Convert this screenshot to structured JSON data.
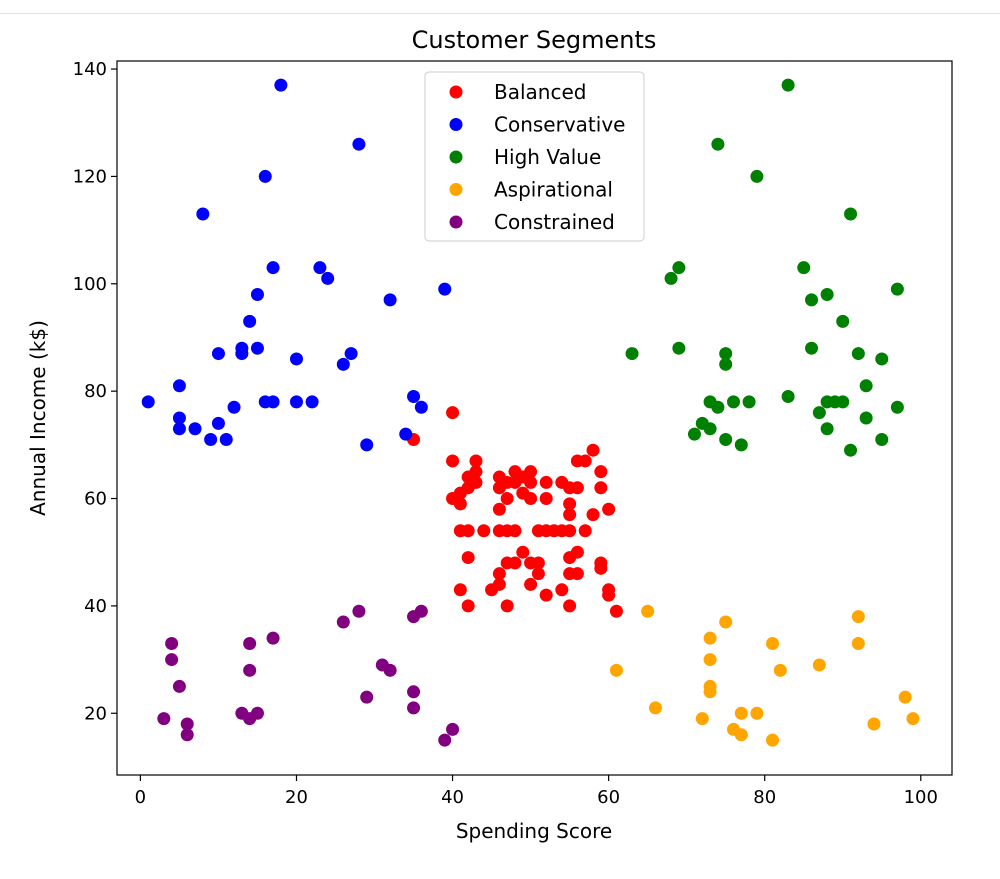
{
  "chart_data": {
    "type": "scatter",
    "title": "Customer Segments",
    "xlabel": "Spending Score",
    "ylabel": "Annual Income (k$)",
    "xlim": [
      -3,
      104
    ],
    "ylim": [
      8.5,
      141.5
    ],
    "xticks": [
      0,
      20,
      40,
      60,
      80,
      100
    ],
    "yticks": [
      20,
      40,
      60,
      80,
      100,
      120,
      140
    ],
    "legend_position": "top-center",
    "grid": false,
    "series": [
      {
        "name": "Balanced",
        "color": "#ff0000",
        "points": [
          [
            35,
            71
          ],
          [
            40,
            76
          ],
          [
            40,
            67
          ],
          [
            40,
            60
          ],
          [
            41,
            61
          ],
          [
            41,
            59
          ],
          [
            41,
            54
          ],
          [
            41,
            43
          ],
          [
            42,
            64
          ],
          [
            42,
            62
          ],
          [
            42,
            54
          ],
          [
            42,
            49
          ],
          [
            42,
            40
          ],
          [
            43,
            67
          ],
          [
            43,
            65
          ],
          [
            43,
            63
          ],
          [
            44,
            54
          ],
          [
            45,
            43
          ],
          [
            46,
            64
          ],
          [
            46,
            62
          ],
          [
            46,
            58
          ],
          [
            46,
            54
          ],
          [
            46,
            46
          ],
          [
            46,
            44
          ],
          [
            47,
            63
          ],
          [
            47,
            60
          ],
          [
            47,
            54
          ],
          [
            47,
            48
          ],
          [
            47,
            40
          ],
          [
            48,
            65
          ],
          [
            48,
            63
          ],
          [
            48,
            54
          ],
          [
            48,
            48
          ],
          [
            49,
            64
          ],
          [
            49,
            61
          ],
          [
            49,
            50
          ],
          [
            50,
            65
          ],
          [
            50,
            63
          ],
          [
            50,
            60
          ],
          [
            50,
            48
          ],
          [
            50,
            44
          ],
          [
            51,
            54
          ],
          [
            51,
            48
          ],
          [
            51,
            46
          ],
          [
            52,
            63
          ],
          [
            52,
            60
          ],
          [
            52,
            54
          ],
          [
            52,
            42
          ],
          [
            53,
            54
          ],
          [
            54,
            63
          ],
          [
            54,
            54
          ],
          [
            54,
            43
          ],
          [
            55,
            62
          ],
          [
            55,
            59
          ],
          [
            55,
            57
          ],
          [
            55,
            54
          ],
          [
            55,
            49
          ],
          [
            55,
            46
          ],
          [
            55,
            40
          ],
          [
            56,
            67
          ],
          [
            56,
            62
          ],
          [
            56,
            50
          ],
          [
            56,
            46
          ],
          [
            57,
            67
          ],
          [
            57,
            54
          ],
          [
            58,
            69
          ],
          [
            58,
            57
          ],
          [
            59,
            65
          ],
          [
            59,
            62
          ],
          [
            59,
            48
          ],
          [
            59,
            47
          ],
          [
            60,
            58
          ],
          [
            60,
            43
          ],
          [
            60,
            42
          ],
          [
            61,
            39
          ]
        ]
      },
      {
        "name": "Conservative",
        "color": "#0000ff",
        "points": [
          [
            1,
            78
          ],
          [
            5,
            81
          ],
          [
            5,
            75
          ],
          [
            5,
            73
          ],
          [
            7,
            73
          ],
          [
            8,
            113
          ],
          [
            9,
            71
          ],
          [
            10,
            87
          ],
          [
            10,
            74
          ],
          [
            11,
            71
          ],
          [
            12,
            77
          ],
          [
            13,
            88
          ],
          [
            13,
            87
          ],
          [
            14,
            93
          ],
          [
            15,
            98
          ],
          [
            15,
            88
          ],
          [
            16,
            120
          ],
          [
            16,
            78
          ],
          [
            17,
            103
          ],
          [
            17,
            78
          ],
          [
            18,
            137
          ],
          [
            20,
            86
          ],
          [
            20,
            78
          ],
          [
            22,
            78
          ],
          [
            23,
            103
          ],
          [
            24,
            101
          ],
          [
            26,
            85
          ],
          [
            27,
            87
          ],
          [
            28,
            126
          ],
          [
            29,
            70
          ],
          [
            32,
            97
          ],
          [
            34,
            72
          ],
          [
            35,
            79
          ],
          [
            36,
            77
          ],
          [
            39,
            99
          ]
        ]
      },
      {
        "name": "High Value",
        "color": "#008000",
        "points": [
          [
            63,
            87
          ],
          [
            68,
            101
          ],
          [
            69,
            103
          ],
          [
            69,
            88
          ],
          [
            71,
            72
          ],
          [
            72,
            74
          ],
          [
            73,
            78
          ],
          [
            73,
            73
          ],
          [
            74,
            126
          ],
          [
            74,
            77
          ],
          [
            75,
            87
          ],
          [
            75,
            85
          ],
          [
            75,
            71
          ],
          [
            76,
            78
          ],
          [
            77,
            70
          ],
          [
            78,
            78
          ],
          [
            79,
            120
          ],
          [
            83,
            137
          ],
          [
            83,
            79
          ],
          [
            85,
            103
          ],
          [
            86,
            97
          ],
          [
            86,
            88
          ],
          [
            87,
            76
          ],
          [
            88,
            98
          ],
          [
            88,
            78
          ],
          [
            88,
            73
          ],
          [
            89,
            78
          ],
          [
            90,
            93
          ],
          [
            90,
            78
          ],
          [
            91,
            113
          ],
          [
            91,
            69
          ],
          [
            92,
            87
          ],
          [
            93,
            81
          ],
          [
            93,
            75
          ],
          [
            95,
            86
          ],
          [
            95,
            71
          ],
          [
            97,
            99
          ],
          [
            97,
            77
          ]
        ]
      },
      {
        "name": "Aspirational",
        "color": "#ffa500",
        "points": [
          [
            61,
            28
          ],
          [
            65,
            39
          ],
          [
            66,
            21
          ],
          [
            72,
            19
          ],
          [
            73,
            34
          ],
          [
            73,
            30
          ],
          [
            73,
            25
          ],
          [
            73,
            24
          ],
          [
            75,
            37
          ],
          [
            76,
            17
          ],
          [
            77,
            20
          ],
          [
            77,
            16
          ],
          [
            79,
            20
          ],
          [
            81,
            33
          ],
          [
            81,
            15
          ],
          [
            82,
            28
          ],
          [
            87,
            29
          ],
          [
            92,
            38
          ],
          [
            92,
            33
          ],
          [
            94,
            18
          ],
          [
            98,
            23
          ],
          [
            99,
            19
          ]
        ]
      },
      {
        "name": "Constrained",
        "color": "#800080",
        "points": [
          [
            3,
            19
          ],
          [
            4,
            33
          ],
          [
            4,
            30
          ],
          [
            5,
            25
          ],
          [
            6,
            18
          ],
          [
            6,
            16
          ],
          [
            13,
            20
          ],
          [
            14,
            33
          ],
          [
            14,
            28
          ],
          [
            14,
            19
          ],
          [
            15,
            20
          ],
          [
            17,
            34
          ],
          [
            26,
            37
          ],
          [
            28,
            39
          ],
          [
            29,
            23
          ],
          [
            31,
            29
          ],
          [
            32,
            28
          ],
          [
            35,
            38
          ],
          [
            35,
            24
          ],
          [
            35,
            21
          ],
          [
            36,
            39
          ],
          [
            39,
            15
          ],
          [
            40,
            17
          ]
        ]
      }
    ]
  }
}
